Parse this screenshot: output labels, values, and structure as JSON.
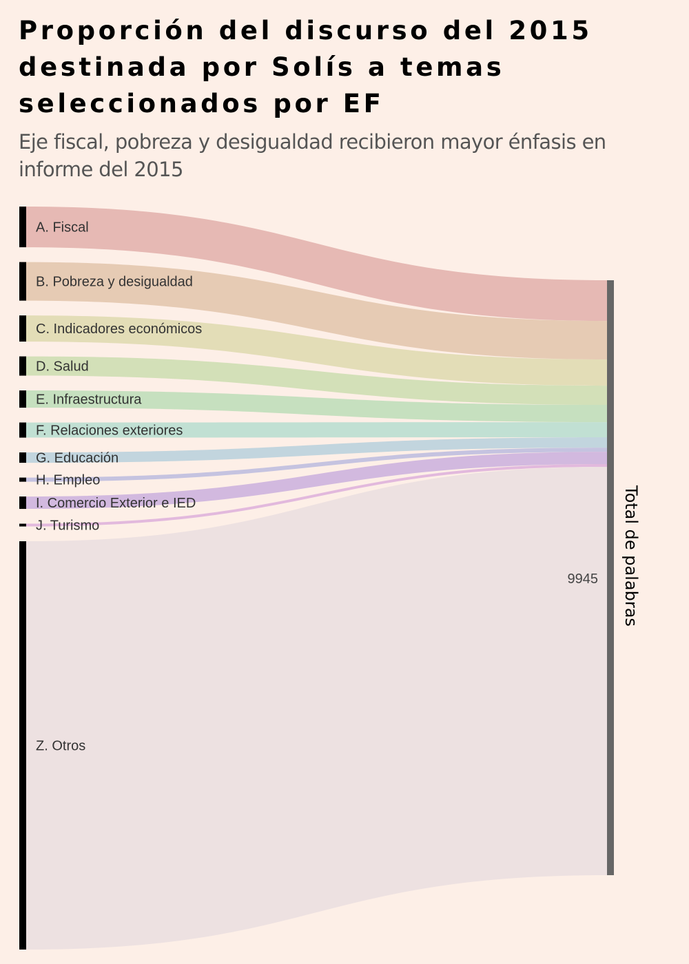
{
  "header": {
    "title": "Proporción del discurso del 2015 destinada por Solís a temas seleccionados por EF",
    "subtitle": "Eje fiscal, pobreza y desigualdad recibieron mayor énfasis en informe del 2015"
  },
  "colors": {
    "background": "#fdefe7",
    "source_node": "#000000",
    "target_node": "#666666"
  },
  "chart_data": {
    "type": "sankey",
    "title": "Proporción del discurso del 2015 destinada por Solís a temas seleccionados por EF",
    "subtitle": "Eje fiscal, pobreza y desigualdad recibieron mayor énfasis en informe del 2015",
    "unit": "palabras",
    "target": {
      "name": "Total de palabras",
      "value": 9945,
      "value_label": "9945"
    },
    "sources": [
      {
        "name": "A. Fiscal",
        "value": 680,
        "color": "#e6b9b4"
      },
      {
        "name": "B. Pobreza y desigualdad",
        "value": 645,
        "color": "#e6cbb4"
      },
      {
        "name": "C. Indicadores económicos",
        "value": 437,
        "color": "#e3ddb7"
      },
      {
        "name": "D. Salud",
        "value": 322,
        "color": "#d3e0b8"
      },
      {
        "name": "E. Infraestructura",
        "value": 288,
        "color": "#c6e0bf"
      },
      {
        "name": "F. Relaciones exteriores",
        "value": 253,
        "color": "#c1e0d3"
      },
      {
        "name": "G. Educación",
        "value": 173,
        "color": "#c2d5de"
      },
      {
        "name": "H. Empleo",
        "value": 69,
        "color": "#c5c3e0"
      },
      {
        "name": "I. Comercio Exterior e IED",
        "value": 207,
        "color": "#d2b9df"
      },
      {
        "name": "J. Turismo",
        "value": 46,
        "color": "#e2b9dd"
      },
      {
        "name": "Z. Otros",
        "value": 6825,
        "color": "#ede1e1"
      }
    ]
  }
}
